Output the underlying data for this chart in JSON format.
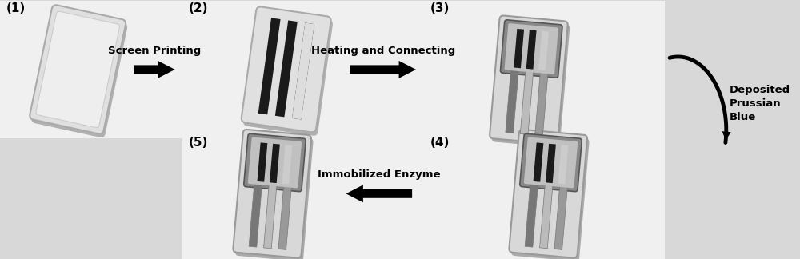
{
  "bg_color": "#d8d8d8",
  "panel_bg": "#f0f0f0",
  "white": "#ffffff",
  "black": "#000000",
  "step_labels": [
    "(1)",
    "(2)",
    "(3)",
    "(4)",
    "(5)"
  ],
  "arrow_labels": [
    "Screen Printing",
    "Heating and Connecting",
    "Deposited\nPrussian\nBlue",
    "Immobilized Enzyme"
  ],
  "fig_width": 10.0,
  "fig_height": 3.24,
  "dpi": 100,
  "card_color": "#cccccc",
  "card_edge": "#999999",
  "frame_color": "#aaaaaa",
  "frame_edge": "#666666",
  "stripe_dark": "#1a1a1a",
  "finger_colors": [
    "#888888",
    "#d0d0d0",
    "#999999"
  ]
}
